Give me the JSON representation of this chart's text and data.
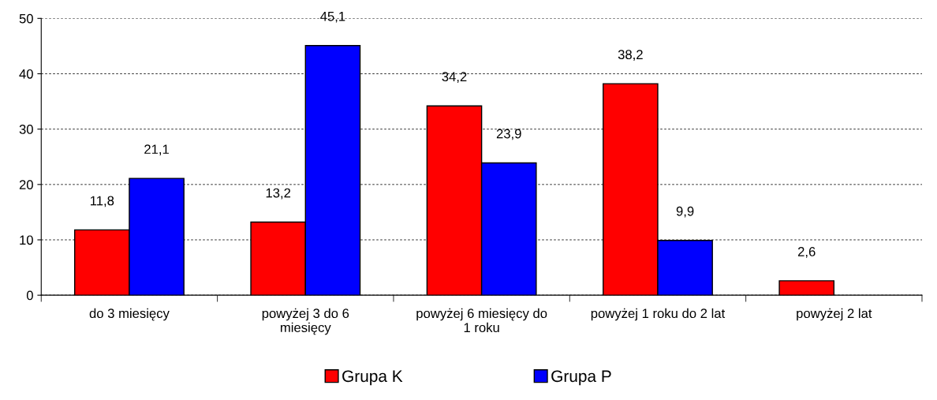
{
  "chart_data": {
    "type": "bar",
    "categories": [
      "do 3 miesięcy",
      "powyżej 3 do 6\nmiesięcy",
      "powyżej 6 miesięcy do\n1 roku",
      "powyżej 1 roku do 2 lat",
      "powyżej 2 lat"
    ],
    "series": [
      {
        "name": "Grupa K",
        "color": "#ff0000",
        "values": [
          11.8,
          13.2,
          34.2,
          38.2,
          2.6
        ],
        "value_labels": [
          "11,8",
          "13,2",
          "34,2",
          "38,2",
          "2,6"
        ]
      },
      {
        "name": "Grupa P",
        "color": "#0000ff",
        "values": [
          21.1,
          45.1,
          23.9,
          9.9,
          null
        ],
        "value_labels": [
          "21,1",
          "45,1",
          "23,9",
          "9,9",
          null
        ]
      }
    ],
    "ylim": [
      0,
      50
    ],
    "yticks": [
      0,
      10,
      20,
      30,
      40,
      50
    ],
    "grid": "y",
    "legend": "bottom"
  }
}
